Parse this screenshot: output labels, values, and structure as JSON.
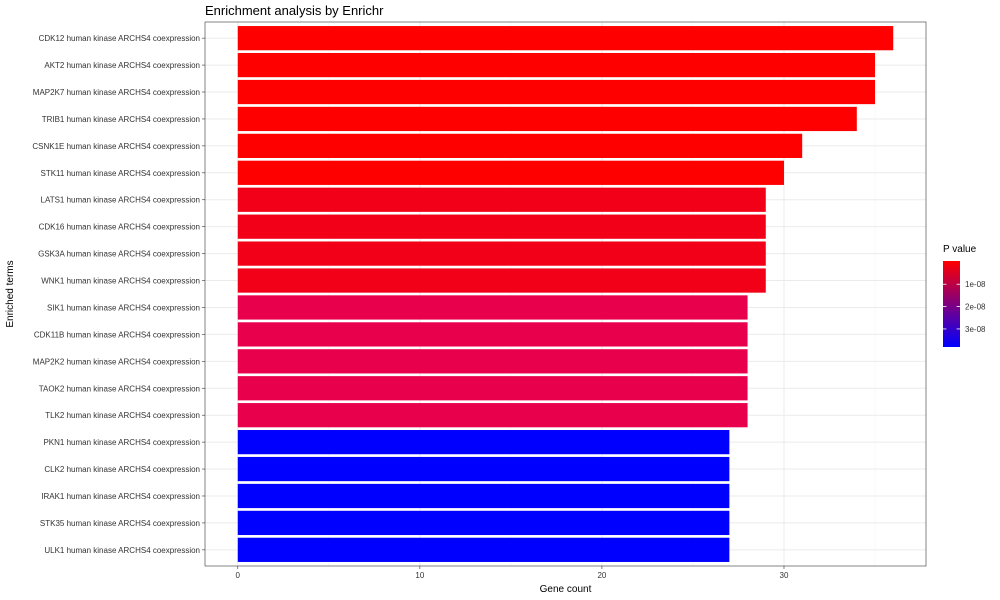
{
  "chart_data": {
    "type": "bar",
    "orientation": "horizontal",
    "title": "Enrichment analysis by Enrichr",
    "xlabel": "Gene count",
    "ylabel": "Enriched terms",
    "xlim": [
      -1.8,
      37.8
    ],
    "xticks": [
      0,
      10,
      20,
      30
    ],
    "grid": true,
    "legend_position": "right",
    "categories": [
      "CDK12 human kinase ARCHS4 coexpression",
      "AKT2 human kinase ARCHS4 coexpression",
      "MAP2K7 human kinase ARCHS4 coexpression",
      "TRIB1 human kinase ARCHS4 coexpression",
      "CSNK1E human kinase ARCHS4 coexpression",
      "STK11 human kinase ARCHS4 coexpression",
      "LATS1 human kinase ARCHS4 coexpression",
      "CDK16 human kinase ARCHS4 coexpression",
      "GSK3A human kinase ARCHS4 coexpression",
      "WNK1 human kinase ARCHS4 coexpression",
      "SIK1 human kinase ARCHS4 coexpression",
      "CDK11B human kinase ARCHS4 coexpression",
      "MAP2K2 human kinase ARCHS4 coexpression",
      "TAOK2 human kinase ARCHS4 coexpression",
      "TLK2 human kinase ARCHS4 coexpression",
      "PKN1 human kinase ARCHS4 coexpression",
      "CLK2 human kinase ARCHS4 coexpression",
      "IRAK1 human kinase ARCHS4 coexpression",
      "STK35 human kinase ARCHS4 coexpression",
      "ULK1 human kinase ARCHS4 coexpression"
    ],
    "values": [
      36,
      35,
      35,
      34,
      31,
      30,
      29,
      29,
      29,
      29,
      28,
      28,
      28,
      28,
      28,
      27,
      27,
      27,
      27,
      27
    ],
    "bar_colors": [
      "#ff0000",
      "#ff0000",
      "#ff0000",
      "#ff0000",
      "#ff0000",
      "#ff0000",
      "#f20018",
      "#f20018",
      "#f20018",
      "#f20018",
      "#e8004d",
      "#e8004d",
      "#e8004d",
      "#e8004d",
      "#e8004d",
      "#0000ff",
      "#0000ff",
      "#0000ff",
      "#0000ff",
      "#0000ff"
    ],
    "legend": {
      "title": "P value",
      "gradient": [
        "#ff0000",
        "#0000ff"
      ],
      "labels": [
        {
          "label": "1e-08",
          "fraction": 0.27
        },
        {
          "label": "2e-08",
          "fraction": 0.53
        },
        {
          "label": "3e-08",
          "fraction": 0.79
        }
      ]
    }
  }
}
